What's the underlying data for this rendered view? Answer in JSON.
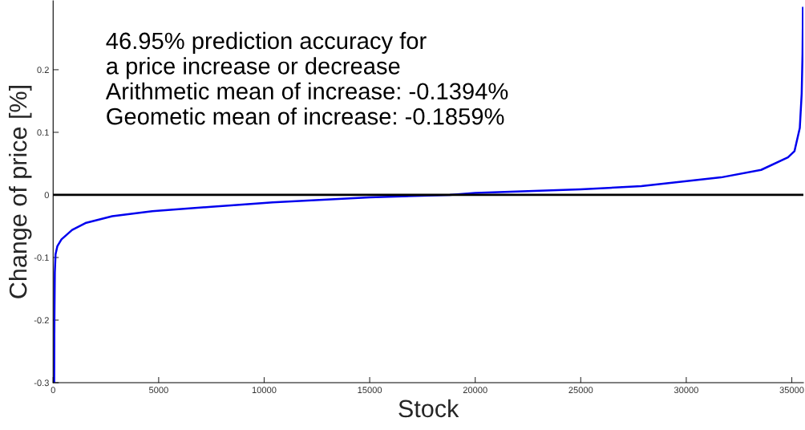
{
  "chart_data": {
    "type": "line",
    "xlabel": "Stock",
    "ylabel": "Change of price [%]",
    "annotations": [
      "46.95% prediction accuracy for",
      "a price increase or decrease",
      "Arithmetic mean of increase: -0.1394%",
      "Geometic mean of increase: -0.1859%"
    ],
    "x": [
      50,
      60,
      80,
      114,
      200,
      395,
      900,
      1530,
      2800,
      4700,
      7500,
      10400,
      15000,
      18800,
      20000,
      25000,
      27870,
      31650,
      33550,
      34820,
      35130,
      35380,
      35470,
      35510,
      35530
    ],
    "series": [
      {
        "color": "#0000ee",
        "values": [
          -0.3,
          -0.2,
          -0.124,
          -0.095,
          -0.082,
          -0.071,
          -0.056,
          -0.045,
          -0.034,
          -0.026,
          -0.019,
          -0.012,
          -0.004,
          0.0,
          0.003,
          0.009,
          0.014,
          0.028,
          0.04,
          0.06,
          0.07,
          0.107,
          0.162,
          0.226,
          0.299
        ]
      }
    ],
    "xlim": [
      0,
      35550
    ],
    "ylim": [
      -0.3,
      0.31
    ],
    "xticks": [
      0,
      5000,
      10000,
      15000,
      20000,
      25000,
      30000,
      35000
    ],
    "yticks": [
      -0.3,
      -0.2,
      -0.1,
      0,
      0.1,
      0.2
    ],
    "ref_lines": [
      {
        "axis": "y",
        "value": 0,
        "color": "#000000"
      }
    ]
  }
}
